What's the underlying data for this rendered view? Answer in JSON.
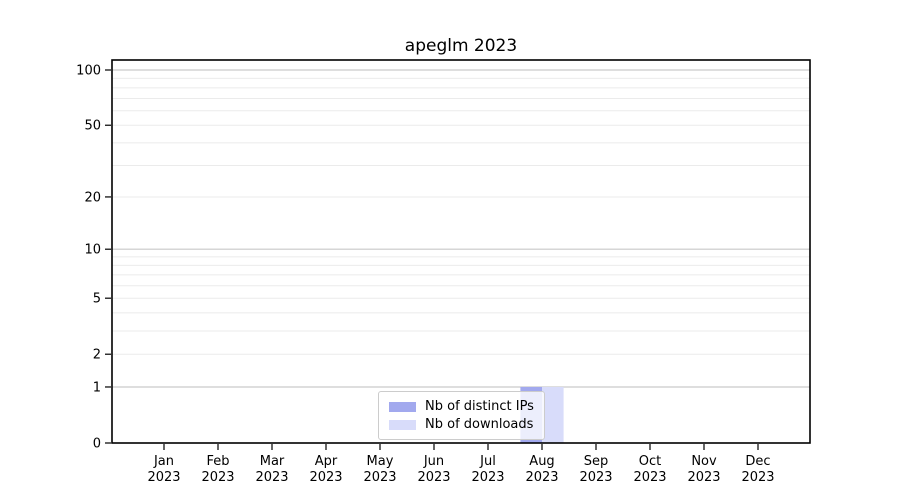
{
  "chart_data": {
    "type": "bar",
    "title": "apeglm 2023",
    "year_label": "2023",
    "categories": [
      "Jan",
      "Feb",
      "Mar",
      "Apr",
      "May",
      "Jun",
      "Jul",
      "Aug",
      "Sep",
      "Oct",
      "Nov",
      "Dec"
    ],
    "series": [
      {
        "name": "Nb of distinct IPs",
        "color": "#a2a9ee",
        "values": [
          0,
          0,
          0,
          0,
          0,
          0,
          0,
          1,
          0,
          0,
          0,
          0
        ]
      },
      {
        "name": "Nb of downloads",
        "color": "#d8dcfa",
        "values": [
          0,
          0,
          0,
          0,
          0,
          0,
          0,
          1,
          0,
          0,
          0,
          0
        ]
      }
    ],
    "y_axis": {
      "scale": "log1p",
      "tick_labels": [
        0,
        1,
        2,
        5,
        10,
        20,
        50,
        100
      ],
      "major_grid_values": [
        1,
        10,
        100
      ],
      "minor_grid_values": [
        2,
        3,
        4,
        5,
        6,
        7,
        8,
        9,
        20,
        30,
        40,
        50,
        60,
        70,
        80,
        90
      ],
      "ylim": [
        0,
        113
      ]
    },
    "grid": true,
    "legend_position": "lower center"
  },
  "colors": {
    "background": "#ffffff",
    "spine": "#000000",
    "tick_text": "#000000",
    "major_grid": "#c9c9c9",
    "minor_grid": "#ebebeb",
    "legend_border": "#cccccc"
  }
}
